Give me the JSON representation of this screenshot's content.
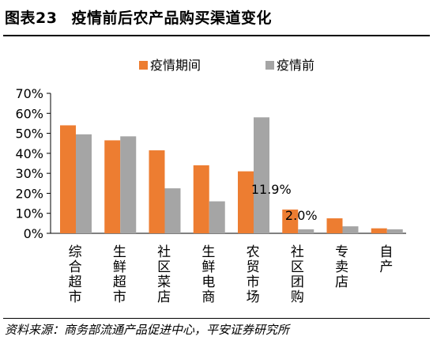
{
  "header": {
    "figure_number": "图表23",
    "title": "疫情前后农产品购买渠道变化"
  },
  "footer": {
    "source": "资料来源：商务部流通产品促进中心，平安证券研究所"
  },
  "chart_data": {
    "type": "bar",
    "categories": [
      "综合超市",
      "生鲜超市",
      "社区菜店",
      "生鲜电商",
      "农贸市场",
      "社区团购",
      "专卖店",
      "自产"
    ],
    "series": [
      {
        "name": "疫情期间",
        "color": "#ED7D31",
        "values": [
          54,
          46.5,
          41.5,
          34,
          31,
          11.9,
          7.5,
          2.5
        ]
      },
      {
        "name": "疫情前",
        "color": "#A5A5A5",
        "values": [
          49.5,
          48.5,
          22.5,
          16,
          58,
          2.0,
          3.5,
          2
        ]
      }
    ],
    "ylim": [
      0,
      70
    ],
    "yticks": [
      "0%",
      "10%",
      "20%",
      "30%",
      "40%",
      "50%",
      "60%",
      "70%"
    ],
    "data_labels": [
      {
        "text": "11.9%",
        "series": 0,
        "index": 5
      },
      {
        "text": "2.0%",
        "series": 1,
        "index": 5
      }
    ],
    "legend_position": "top",
    "grid": false
  }
}
